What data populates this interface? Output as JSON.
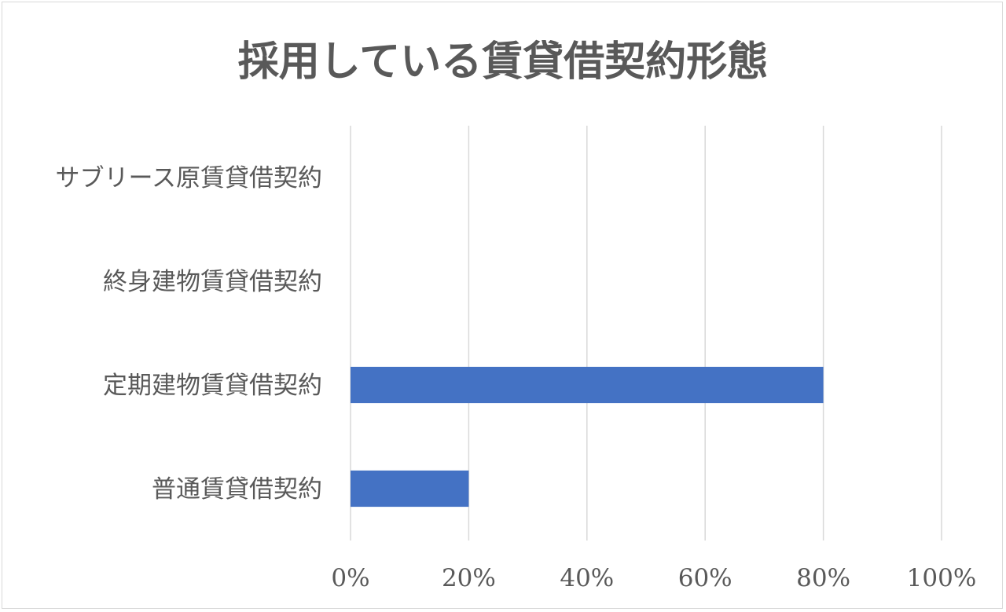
{
  "chart_data": {
    "type": "bar",
    "orientation": "horizontal",
    "title": "採用している賃貸借契約形態",
    "categories": [
      "サブリース原賃貸借契約",
      "終身建物賃貸借契約",
      "定期建物賃貸借契約",
      "普通賃貸借契約"
    ],
    "values": [
      0,
      0,
      0.8,
      0.2
    ],
    "xlim": [
      0,
      1
    ],
    "x_ticks": [
      "0%",
      "20%",
      "40%",
      "60%",
      "80%",
      "100%"
    ],
    "grid": true,
    "legend": "none",
    "bar_color": "#4472C4"
  }
}
